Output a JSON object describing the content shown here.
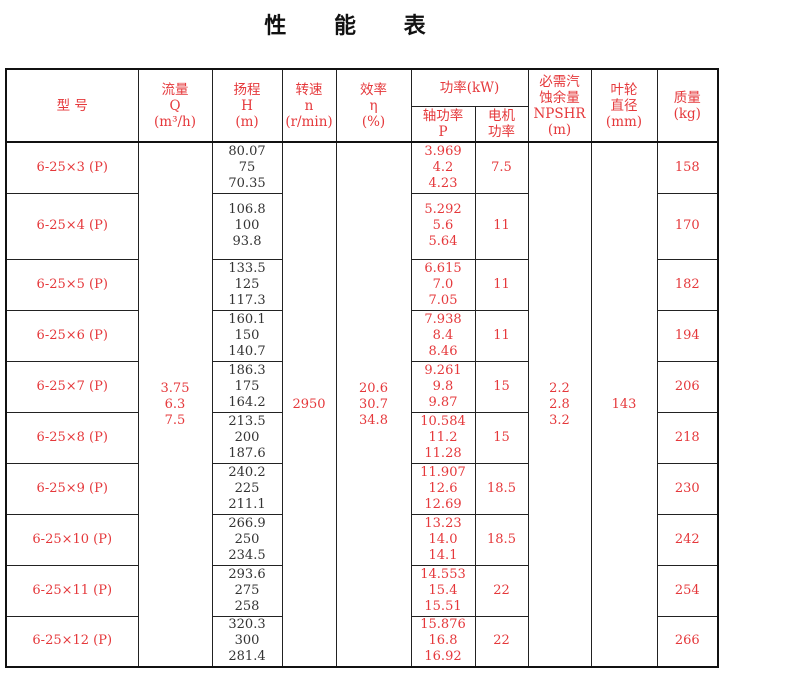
{
  "title": "性 能 表",
  "colors": {
    "accent_red": "#e5383b",
    "text_dark": "#333333",
    "border": "#111111"
  },
  "headers": {
    "model": "型  号",
    "flow": "流量\nQ\n(m³/h)",
    "head": "扬程\nH\n(m)",
    "speed": "转速\nn\n(r/min)",
    "efficiency": "效率\nη\n(%)",
    "power": "功率(kW)",
    "shaft_power": "轴功率\nP",
    "motor_power": "电机\n功率",
    "npshr": "必需汽\n蚀余量\nNPSHR\n(m)",
    "impeller": "叶轮\n直径\n(mm)",
    "mass": "质量\n(kg)"
  },
  "shared": {
    "flow": "3.75\n6.3\n7.5",
    "speed": "2950",
    "efficiency": "20.6\n30.7\n34.8",
    "npshr": "2.2\n2.8\n3.2",
    "impeller": "143"
  },
  "rows": [
    {
      "model": "6-25×3 (P)",
      "head": "80.07\n75\n70.35",
      "shaft": "3.969\n4.2\n4.23",
      "motor": "7.5",
      "mass": "158"
    },
    {
      "model": "6-25×4 (P)",
      "head": "106.8\n100\n93.8",
      "shaft": "5.292\n5.6\n5.64",
      "motor": "11",
      "mass": "170"
    },
    {
      "model": "6-25×5 (P)",
      "head": "133.5\n125\n117.3",
      "shaft": "6.615\n7.0\n7.05",
      "motor": "11",
      "mass": "182"
    },
    {
      "model": "6-25×6 (P)",
      "head": "160.1\n150\n140.7",
      "shaft": "7.938\n8.4\n8.46",
      "motor": "11",
      "mass": "194"
    },
    {
      "model": "6-25×7 (P)",
      "head": "186.3\n175\n164.2",
      "shaft": "9.261\n9.8\n9.87",
      "motor": "15",
      "mass": "206"
    },
    {
      "model": "6-25×8 (P)",
      "head": "213.5\n200\n187.6",
      "shaft": "10.584\n11.2\n11.28",
      "motor": "15",
      "mass": "218"
    },
    {
      "model": "6-25×9 (P)",
      "head": "240.2\n225\n211.1",
      "shaft": "11.907\n12.6\n12.69",
      "motor": "18.5",
      "mass": "230"
    },
    {
      "model": "6-25×10 (P)",
      "head": "266.9\n250\n234.5",
      "shaft": "13.23\n14.0\n14.1",
      "motor": "18.5",
      "mass": "242"
    },
    {
      "model": "6-25×11 (P)",
      "head": "293.6\n275\n258",
      "shaft": "14.553\n15.4\n15.51",
      "motor": "22",
      "mass": "254"
    },
    {
      "model": "6-25×12 (P)",
      "head": "320.3\n300\n281.4",
      "shaft": "15.876\n16.8\n16.92",
      "motor": "22",
      "mass": "266"
    }
  ]
}
